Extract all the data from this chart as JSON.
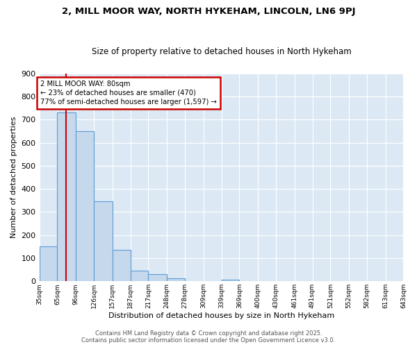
{
  "title1": "2, MILL MOOR WAY, NORTH HYKEHAM, LINCOLN, LN6 9PJ",
  "title2": "Size of property relative to detached houses in North Hykeham",
  "xlabel": "Distribution of detached houses by size in North Hykeham",
  "ylabel": "Number of detached properties",
  "bin_edges": [
    35,
    65,
    96,
    126,
    157,
    187,
    217,
    248,
    278,
    309,
    339,
    369,
    400,
    430,
    461,
    491,
    521,
    552,
    582,
    613,
    643
  ],
  "bar_heights": [
    150,
    730,
    650,
    345,
    135,
    45,
    30,
    12,
    0,
    0,
    7,
    0,
    0,
    0,
    0,
    0,
    0,
    0,
    0,
    0
  ],
  "bar_color": "#c5d8ec",
  "bar_edge_color": "#5b9bd5",
  "background_color": "#dce9f5",
  "grid_color": "#ffffff",
  "red_line_x": 80,
  "annotation_text": "2 MILL MOOR WAY: 80sqm\n← 23% of detached houses are smaller (470)\n77% of semi-detached houses are larger (1,597) →",
  "annotation_box_color": "#ffffff",
  "annotation_box_edge": "#cc0000",
  "ylim": [
    0,
    900
  ],
  "yticks": [
    0,
    100,
    200,
    300,
    400,
    500,
    600,
    700,
    800,
    900
  ],
  "tick_labels": [
    "35sqm",
    "65sqm",
    "96sqm",
    "126sqm",
    "157sqm",
    "187sqm",
    "217sqm",
    "248sqm",
    "278sqm",
    "309sqm",
    "339sqm",
    "369sqm",
    "400sqm",
    "430sqm",
    "461sqm",
    "491sqm",
    "521sqm",
    "552sqm",
    "582sqm",
    "613sqm",
    "643sqm"
  ],
  "footer1": "Contains HM Land Registry data © Crown copyright and database right 2025.",
  "footer2": "Contains public sector information licensed under the Open Government Licence v3.0."
}
